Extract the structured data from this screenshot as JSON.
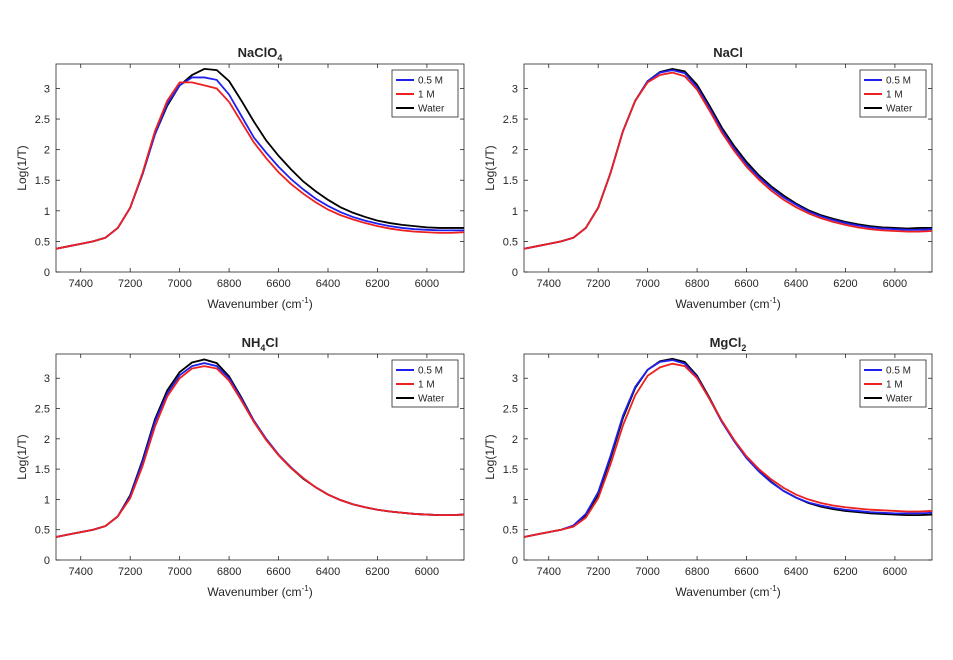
{
  "figure": {
    "layout": "2x2"
  },
  "series_colors": {
    "0.5 M": "#2020ee",
    "1 M": "#ee2020",
    "Water": "#000000"
  },
  "chart_data": [
    {
      "type": "line",
      "title_main": "NaClO",
      "title_sub": "4",
      "xlabel_main": "Wavenumber (cm",
      "xlabel_sup": "-1",
      "xlabel_end": ")",
      "ylabel": "Log(1/T)",
      "xlim": [
        7500,
        5850
      ],
      "x_reversed": true,
      "ylim": [
        0,
        3.4
      ],
      "xticks": [
        7400,
        7200,
        7000,
        6800,
        6600,
        6400,
        6200,
        6000
      ],
      "yticks": [
        0,
        0.5,
        1,
        1.5,
        2,
        2.5,
        3
      ],
      "legend": {
        "position": "top-right",
        "entries": [
          "0.5 M",
          "1 M",
          "Water"
        ]
      },
      "series": [
        {
          "name": "0.5 M",
          "x": [
            7500,
            7450,
            7400,
            7350,
            7300,
            7250,
            7200,
            7150,
            7100,
            7050,
            7000,
            6950,
            6900,
            6850,
            6800,
            6750,
            6700,
            6650,
            6600,
            6550,
            6500,
            6450,
            6400,
            6350,
            6300,
            6250,
            6200,
            6150,
            6100,
            6050,
            6000,
            5950,
            5900,
            5850
          ],
          "y": [
            0.38,
            0.42,
            0.46,
            0.5,
            0.56,
            0.72,
            1.05,
            1.6,
            2.25,
            2.75,
            3.05,
            3.18,
            3.18,
            3.14,
            2.9,
            2.55,
            2.2,
            1.95,
            1.72,
            1.52,
            1.35,
            1.2,
            1.08,
            0.98,
            0.9,
            0.84,
            0.79,
            0.75,
            0.72,
            0.7,
            0.69,
            0.68,
            0.68,
            0.68
          ]
        },
        {
          "name": "1 M",
          "x": [
            7500,
            7450,
            7400,
            7350,
            7300,
            7250,
            7200,
            7150,
            7100,
            7050,
            7000,
            6950,
            6900,
            6850,
            6800,
            6750,
            6700,
            6650,
            6600,
            6550,
            6500,
            6450,
            6400,
            6350,
            6300,
            6250,
            6200,
            6150,
            6100,
            6050,
            6000,
            5950,
            5900,
            5850
          ],
          "y": [
            0.38,
            0.42,
            0.46,
            0.5,
            0.56,
            0.72,
            1.05,
            1.62,
            2.3,
            2.8,
            3.1,
            3.1,
            3.05,
            3.0,
            2.78,
            2.45,
            2.12,
            1.86,
            1.63,
            1.44,
            1.28,
            1.14,
            1.02,
            0.93,
            0.86,
            0.8,
            0.75,
            0.71,
            0.68,
            0.66,
            0.65,
            0.64,
            0.64,
            0.65
          ]
        },
        {
          "name": "Water",
          "x": [
            7500,
            7450,
            7400,
            7350,
            7300,
            7250,
            7200,
            7150,
            7100,
            7050,
            7000,
            6950,
            6900,
            6850,
            6800,
            6750,
            6700,
            6650,
            6600,
            6550,
            6500,
            6450,
            6400,
            6350,
            6300,
            6250,
            6200,
            6150,
            6100,
            6050,
            6000,
            5950,
            5900,
            5850
          ],
          "y": [
            0.38,
            0.42,
            0.46,
            0.5,
            0.56,
            0.72,
            1.05,
            1.6,
            2.25,
            2.72,
            3.05,
            3.22,
            3.32,
            3.3,
            3.12,
            2.8,
            2.46,
            2.15,
            1.9,
            1.68,
            1.48,
            1.32,
            1.18,
            1.06,
            0.97,
            0.9,
            0.84,
            0.8,
            0.77,
            0.75,
            0.73,
            0.72,
            0.72,
            0.72
          ]
        }
      ]
    },
    {
      "type": "line",
      "title_main": "NaCl",
      "title_sub": "",
      "xlabel_main": "Wavenumber (cm",
      "xlabel_sup": "-1",
      "xlabel_end": ")",
      "ylabel": "Log(1/T)",
      "xlim": [
        7500,
        5850
      ],
      "x_reversed": true,
      "ylim": [
        0,
        3.4
      ],
      "xticks": [
        7400,
        7200,
        7000,
        6800,
        6600,
        6400,
        6200,
        6000
      ],
      "yticks": [
        0,
        0.5,
        1,
        1.5,
        2,
        2.5,
        3
      ],
      "legend": {
        "position": "top-right",
        "entries": [
          "0.5 M",
          "1 M",
          "Water"
        ]
      },
      "series": [
        {
          "name": "0.5 M",
          "x": [
            7500,
            7450,
            7400,
            7350,
            7300,
            7250,
            7200,
            7150,
            7100,
            7050,
            7000,
            6950,
            6900,
            6850,
            6800,
            6750,
            6700,
            6650,
            6600,
            6550,
            6500,
            6450,
            6400,
            6350,
            6300,
            6250,
            6200,
            6150,
            6100,
            6050,
            6000,
            5950,
            5900,
            5850
          ],
          "y": [
            0.38,
            0.42,
            0.46,
            0.5,
            0.56,
            0.72,
            1.05,
            1.62,
            2.3,
            2.8,
            3.12,
            3.26,
            3.3,
            3.25,
            3.02,
            2.68,
            2.32,
            2.02,
            1.76,
            1.55,
            1.37,
            1.22,
            1.1,
            0.99,
            0.91,
            0.85,
            0.8,
            0.76,
            0.73,
            0.71,
            0.7,
            0.69,
            0.69,
            0.7
          ]
        },
        {
          "name": "1 M",
          "x": [
            7500,
            7450,
            7400,
            7350,
            7300,
            7250,
            7200,
            7150,
            7100,
            7050,
            7000,
            6950,
            6900,
            6850,
            6800,
            6750,
            6700,
            6650,
            6600,
            6550,
            6500,
            6450,
            6400,
            6350,
            6300,
            6250,
            6200,
            6150,
            6100,
            6050,
            6000,
            5950,
            5900,
            5850
          ],
          "y": [
            0.38,
            0.42,
            0.46,
            0.5,
            0.56,
            0.72,
            1.05,
            1.62,
            2.3,
            2.8,
            3.1,
            3.22,
            3.26,
            3.2,
            2.98,
            2.64,
            2.28,
            1.98,
            1.72,
            1.51,
            1.33,
            1.18,
            1.06,
            0.96,
            0.88,
            0.82,
            0.77,
            0.73,
            0.7,
            0.68,
            0.67,
            0.66,
            0.66,
            0.67
          ]
        },
        {
          "name": "Water",
          "x": [
            7500,
            7450,
            7400,
            7350,
            7300,
            7250,
            7200,
            7150,
            7100,
            7050,
            7000,
            6950,
            6900,
            6850,
            6800,
            6750,
            6700,
            6650,
            6600,
            6550,
            6500,
            6450,
            6400,
            6350,
            6300,
            6250,
            6200,
            6150,
            6100,
            6050,
            6000,
            5950,
            5900,
            5850
          ],
          "y": [
            0.38,
            0.42,
            0.46,
            0.5,
            0.56,
            0.72,
            1.05,
            1.62,
            2.3,
            2.8,
            3.12,
            3.27,
            3.32,
            3.28,
            3.06,
            2.72,
            2.36,
            2.06,
            1.8,
            1.58,
            1.4,
            1.25,
            1.12,
            1.01,
            0.93,
            0.87,
            0.82,
            0.78,
            0.75,
            0.73,
            0.72,
            0.71,
            0.72,
            0.72
          ]
        }
      ]
    },
    {
      "type": "line",
      "title_main": "NH",
      "title_sub": "4",
      "title_end": "Cl",
      "xlabel_main": "Wavenumber (cm",
      "xlabel_sup": "-1",
      "xlabel_end": ")",
      "ylabel": "Log(1/T)",
      "xlim": [
        7500,
        5850
      ],
      "x_reversed": true,
      "ylim": [
        0,
        3.4
      ],
      "xticks": [
        7400,
        7200,
        7000,
        6800,
        6600,
        6400,
        6200,
        6000
      ],
      "yticks": [
        0,
        0.5,
        1,
        1.5,
        2,
        2.5,
        3
      ],
      "legend": {
        "position": "top-right",
        "entries": [
          "0.5 M",
          "1 M",
          "Water"
        ]
      },
      "series": [
        {
          "name": "0.5 M",
          "x": [
            7500,
            7450,
            7400,
            7350,
            7300,
            7250,
            7200,
            7150,
            7100,
            7050,
            7000,
            6950,
            6900,
            6850,
            6800,
            6750,
            6700,
            6650,
            6600,
            6550,
            6500,
            6450,
            6400,
            6350,
            6300,
            6250,
            6200,
            6150,
            6100,
            6050,
            6000,
            5950,
            5900,
            5850
          ],
          "y": [
            0.38,
            0.42,
            0.46,
            0.5,
            0.56,
            0.72,
            1.05,
            1.62,
            2.28,
            2.75,
            3.05,
            3.2,
            3.25,
            3.2,
            3.0,
            2.66,
            2.3,
            2.0,
            1.74,
            1.53,
            1.35,
            1.2,
            1.08,
            0.99,
            0.92,
            0.87,
            0.83,
            0.8,
            0.78,
            0.76,
            0.75,
            0.74,
            0.74,
            0.75
          ]
        },
        {
          "name": "1 M",
          "x": [
            7500,
            7450,
            7400,
            7350,
            7300,
            7250,
            7200,
            7150,
            7100,
            7050,
            7000,
            6950,
            6900,
            6850,
            6800,
            6750,
            6700,
            6650,
            6600,
            6550,
            6500,
            6450,
            6400,
            6350,
            6300,
            6250,
            6200,
            6150,
            6100,
            6050,
            6000,
            5950,
            5900,
            5850
          ],
          "y": [
            0.38,
            0.42,
            0.46,
            0.5,
            0.56,
            0.72,
            1.02,
            1.55,
            2.2,
            2.7,
            3.0,
            3.16,
            3.2,
            3.16,
            2.96,
            2.63,
            2.28,
            1.98,
            1.73,
            1.52,
            1.35,
            1.2,
            1.08,
            0.99,
            0.92,
            0.87,
            0.83,
            0.8,
            0.78,
            0.76,
            0.75,
            0.74,
            0.74,
            0.75
          ]
        },
        {
          "name": "Water",
          "x": [
            7500,
            7450,
            7400,
            7350,
            7300,
            7250,
            7200,
            7150,
            7100,
            7050,
            7000,
            6950,
            6900,
            6850,
            6800,
            6750,
            6700,
            6650,
            6600,
            6550,
            6500,
            6450,
            6400,
            6350,
            6300,
            6250,
            6200,
            6150,
            6100,
            6050,
            6000,
            5950,
            5900,
            5850
          ],
          "y": [
            0.38,
            0.42,
            0.46,
            0.5,
            0.56,
            0.72,
            1.07,
            1.65,
            2.32,
            2.8,
            3.1,
            3.26,
            3.31,
            3.25,
            3.03,
            2.68,
            2.3,
            1.99,
            1.73,
            1.52,
            1.34,
            1.2,
            1.08,
            0.99,
            0.92,
            0.87,
            0.83,
            0.8,
            0.78,
            0.76,
            0.75,
            0.74,
            0.74,
            0.75
          ]
        }
      ]
    },
    {
      "type": "line",
      "title_main": "MgCl",
      "title_sub": "2",
      "xlabel_main": "Wavenumber (cm",
      "xlabel_sup": "-1",
      "xlabel_end": ")",
      "ylabel": "Log(1/T)",
      "xlim": [
        7500,
        5850
      ],
      "x_reversed": true,
      "ylim": [
        0,
        3.4
      ],
      "xticks": [
        7400,
        7200,
        7000,
        6800,
        6600,
        6400,
        6200,
        6000
      ],
      "yticks": [
        0,
        0.5,
        1,
        1.5,
        2,
        2.5,
        3
      ],
      "legend": {
        "position": "top-right",
        "entries": [
          "0.5 M",
          "1 M",
          "Water"
        ]
      },
      "series": [
        {
          "name": "0.5 M",
          "x": [
            7500,
            7450,
            7400,
            7350,
            7300,
            7250,
            7200,
            7150,
            7100,
            7050,
            7000,
            6950,
            6900,
            6850,
            6800,
            6750,
            6700,
            6650,
            6600,
            6550,
            6500,
            6450,
            6400,
            6350,
            6300,
            6250,
            6200,
            6150,
            6100,
            6050,
            6000,
            5950,
            5900,
            5850
          ],
          "y": [
            0.38,
            0.42,
            0.46,
            0.5,
            0.57,
            0.76,
            1.12,
            1.72,
            2.38,
            2.86,
            3.14,
            3.27,
            3.3,
            3.24,
            3.02,
            2.66,
            2.28,
            1.96,
            1.68,
            1.46,
            1.28,
            1.14,
            1.03,
            0.95,
            0.9,
            0.86,
            0.83,
            0.81,
            0.79,
            0.78,
            0.77,
            0.77,
            0.77,
            0.78
          ]
        },
        {
          "name": "1 M",
          "x": [
            7500,
            7450,
            7400,
            7350,
            7300,
            7250,
            7200,
            7150,
            7100,
            7050,
            7000,
            6950,
            6900,
            6850,
            6800,
            6750,
            6700,
            6650,
            6600,
            6550,
            6500,
            6450,
            6400,
            6350,
            6300,
            6250,
            6200,
            6150,
            6100,
            6050,
            6000,
            5950,
            5900,
            5850
          ],
          "y": [
            0.38,
            0.42,
            0.46,
            0.5,
            0.55,
            0.7,
            1.02,
            1.58,
            2.22,
            2.72,
            3.04,
            3.18,
            3.24,
            3.2,
            3.0,
            2.66,
            2.3,
            1.98,
            1.71,
            1.5,
            1.33,
            1.19,
            1.08,
            1.0,
            0.94,
            0.9,
            0.87,
            0.85,
            0.83,
            0.82,
            0.81,
            0.8,
            0.8,
            0.81
          ]
        },
        {
          "name": "Water",
          "x": [
            7500,
            7450,
            7400,
            7350,
            7300,
            7250,
            7200,
            7150,
            7100,
            7050,
            7000,
            6950,
            6900,
            6850,
            6800,
            6750,
            6700,
            6650,
            6600,
            6550,
            6500,
            6450,
            6400,
            6350,
            6300,
            6250,
            6200,
            6150,
            6100,
            6050,
            6000,
            5950,
            5900,
            5850
          ],
          "y": [
            0.38,
            0.42,
            0.46,
            0.5,
            0.56,
            0.74,
            1.08,
            1.68,
            2.34,
            2.84,
            3.14,
            3.28,
            3.32,
            3.27,
            3.04,
            2.68,
            2.29,
            1.97,
            1.69,
            1.47,
            1.29,
            1.14,
            1.03,
            0.94,
            0.88,
            0.84,
            0.81,
            0.79,
            0.77,
            0.76,
            0.75,
            0.74,
            0.74,
            0.75
          ]
        }
      ]
    }
  ]
}
